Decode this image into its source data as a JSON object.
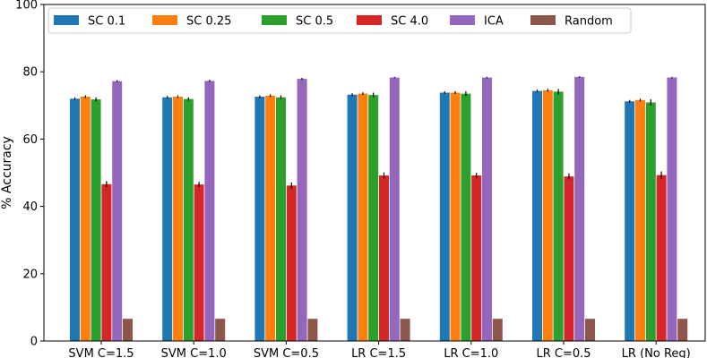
{
  "chart_data": {
    "type": "bar",
    "title": "",
    "xlabel": "",
    "ylabel": "% Accuracy",
    "ylim": [
      0,
      100
    ],
    "yticks": [
      0,
      20,
      40,
      60,
      80,
      100
    ],
    "grid": false,
    "legend_position": "top",
    "categories": [
      "SVM C=1.5",
      "SVM C=1.0",
      "SVM C=0.5",
      "LR C=1.5",
      "LR C=1.0",
      "LR C=0.5",
      "LR (No Reg)"
    ],
    "series": [
      {
        "name": "SC 0.1",
        "color": "#1f77b4",
        "values": [
          72.0,
          72.4,
          72.6,
          73.2,
          73.8,
          74.3,
          71.2
        ],
        "errors": [
          0.4,
          0.4,
          0.4,
          0.4,
          0.4,
          0.4,
          0.4
        ]
      },
      {
        "name": "SC 0.25",
        "color": "#ff7f0e",
        "values": [
          72.6,
          72.6,
          72.9,
          73.5,
          73.8,
          74.5,
          71.6
        ],
        "errors": [
          0.4,
          0.4,
          0.4,
          0.4,
          0.4,
          0.4,
          0.4
        ]
      },
      {
        "name": "SC 0.5",
        "color": "#2ca02c",
        "values": [
          71.8,
          71.9,
          72.4,
          73.1,
          73.5,
          74.1,
          70.9
        ],
        "errors": [
          0.6,
          0.5,
          0.6,
          0.7,
          0.7,
          0.8,
          0.9
        ]
      },
      {
        "name": "SC 4.0",
        "color": "#d62728",
        "values": [
          46.6,
          46.5,
          46.2,
          49.2,
          49.2,
          48.9,
          49.3
        ],
        "errors": [
          0.9,
          0.8,
          0.9,
          0.9,
          0.8,
          0.9,
          1.1
        ]
      },
      {
        "name": "ICA",
        "color": "#9467bd",
        "values": [
          77.2,
          77.3,
          77.9,
          78.3,
          78.3,
          78.5,
          78.3
        ],
        "errors": [
          0.3,
          0.3,
          0.3,
          0.2,
          0.2,
          0.2,
          0.2
        ]
      },
      {
        "name": "Random",
        "color": "#8c564b",
        "values": [
          6.6,
          6.6,
          6.6,
          6.6,
          6.6,
          6.6,
          6.6
        ],
        "errors": [
          0,
          0,
          0,
          0,
          0,
          0,
          0
        ]
      }
    ]
  }
}
